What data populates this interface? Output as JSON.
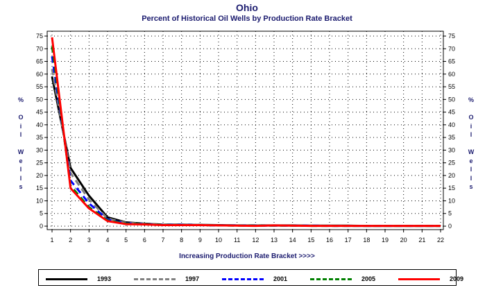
{
  "chart_data": {
    "type": "line",
    "title": "Ohio",
    "subtitle": "Percent of Historical Oil Wells by Production Rate Bracket",
    "xlabel": "Increasing Production Rate Bracket >>>>",
    "ylabel": "% Oil Wells",
    "ylim": [
      0,
      75
    ],
    "xlim": [
      1,
      22
    ],
    "grid": true,
    "legend_position": "bottom",
    "x": [
      1,
      2,
      3,
      4,
      5,
      6,
      7,
      8,
      9,
      10,
      11,
      12,
      13,
      14,
      15,
      16,
      17,
      18,
      19,
      20,
      21,
      22
    ],
    "yticks": [
      0,
      5,
      10,
      15,
      20,
      25,
      30,
      35,
      40,
      45,
      50,
      55,
      60,
      65,
      70,
      75
    ],
    "series": [
      {
        "name": "1993",
        "color": "#000000",
        "dash": "solid",
        "values": [
          59,
          23,
          12,
          3.5,
          1.5,
          1,
          0.6,
          0.6,
          0.5,
          0.4,
          0.3,
          0.3,
          0.3,
          0.3,
          0.2,
          0.2,
          0.2,
          0.1,
          0.1,
          0.1,
          0.1,
          0.1
        ]
      },
      {
        "name": "1997",
        "color": "#808080",
        "dash": "dashed",
        "values": [
          62,
          21,
          10.5,
          3,
          1.3,
          0.9,
          0.6,
          0.5,
          0.5,
          0.3,
          0.3,
          0.3,
          0.2,
          0.2,
          0.2,
          0.2,
          0.1,
          0.1,
          0.1,
          0.1,
          0.1,
          0.1
        ]
      },
      {
        "name": "2001",
        "color": "#0000ff",
        "dash": "dashed",
        "values": [
          67,
          18,
          9,
          2.6,
          1.1,
          0.8,
          0.5,
          0.5,
          0.4,
          0.3,
          0.3,
          0.2,
          0.2,
          0.2,
          0.2,
          0.1,
          0.1,
          0.1,
          0.1,
          0.1,
          0.1,
          0.1
        ]
      },
      {
        "name": "2005",
        "color": "#008000",
        "dash": "dashed",
        "values": [
          71,
          16,
          7.5,
          2.3,
          1,
          0.8,
          0.5,
          0.4,
          0.4,
          0.3,
          0.2,
          0.2,
          0.2,
          0.2,
          0.1,
          0.1,
          0.1,
          0.1,
          0.1,
          0.1,
          0.1,
          0.1
        ]
      },
      {
        "name": "2009",
        "color": "#ff0000",
        "dash": "solid",
        "values": [
          74.5,
          15,
          7,
          2,
          0.8,
          0.7,
          0.4,
          0.4,
          0.4,
          0.3,
          0.2,
          0.1,
          0.3,
          0.2,
          0.1,
          0.1,
          0.1,
          0.1,
          0.1,
          0.1,
          0.1,
          0.1
        ]
      }
    ]
  }
}
